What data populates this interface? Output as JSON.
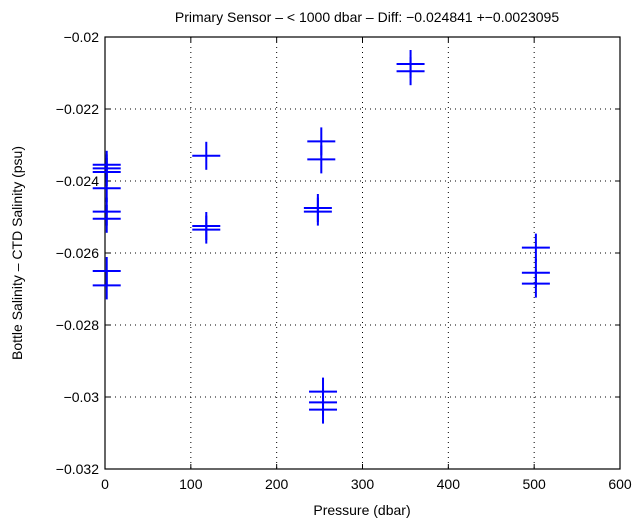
{
  "chart_data": {
    "type": "scatter",
    "title": "Primary Sensor – < 1000 dbar – Diff: −0.024841 +−0.0023095",
    "xlabel": "Pressure (dbar)",
    "ylabel": "Bottle Salinity – CTD Salinity (psu)",
    "xlim": [
      0,
      600
    ],
    "ylim": [
      -0.032,
      -0.02
    ],
    "xticks": [
      0,
      100,
      200,
      300,
      400,
      500,
      600
    ],
    "xtick_labels": [
      "0",
      "100",
      "200",
      "300",
      "400",
      "500",
      "600"
    ],
    "yticks": [
      -0.032,
      -0.03,
      -0.028,
      -0.026,
      -0.024,
      -0.022,
      -0.02
    ],
    "ytick_labels": [
      "−0.032",
      "−0.03",
      "−0.028",
      "−0.026",
      "−0.024",
      "−0.022",
      "−0.02"
    ],
    "grid": true,
    "marker": "plus",
    "color": "#0000ff",
    "points": [
      {
        "x": 2,
        "y": -0.02355
      },
      {
        "x": 2,
        "y": -0.02365
      },
      {
        "x": 2,
        "y": -0.02375
      },
      {
        "x": 2,
        "y": -0.0242
      },
      {
        "x": 2,
        "y": -0.02485
      },
      {
        "x": 2,
        "y": -0.02505
      },
      {
        "x": 2,
        "y": -0.0265
      },
      {
        "x": 2,
        "y": -0.0269
      },
      {
        "x": 118,
        "y": -0.0233
      },
      {
        "x": 118,
        "y": -0.02525
      },
      {
        "x": 118,
        "y": -0.02535
      },
      {
        "x": 248,
        "y": -0.02475
      },
      {
        "x": 248,
        "y": -0.02485
      },
      {
        "x": 252,
        "y": -0.0229
      },
      {
        "x": 252,
        "y": -0.0234
      },
      {
        "x": 254,
        "y": -0.02985
      },
      {
        "x": 254,
        "y": -0.03015
      },
      {
        "x": 254,
        "y": -0.03035
      },
      {
        "x": 356,
        "y": -0.02075
      },
      {
        "x": 356,
        "y": -0.02095
      },
      {
        "x": 502,
        "y": -0.02585
      },
      {
        "x": 502,
        "y": -0.02655
      },
      {
        "x": 502,
        "y": -0.02685
      }
    ]
  }
}
